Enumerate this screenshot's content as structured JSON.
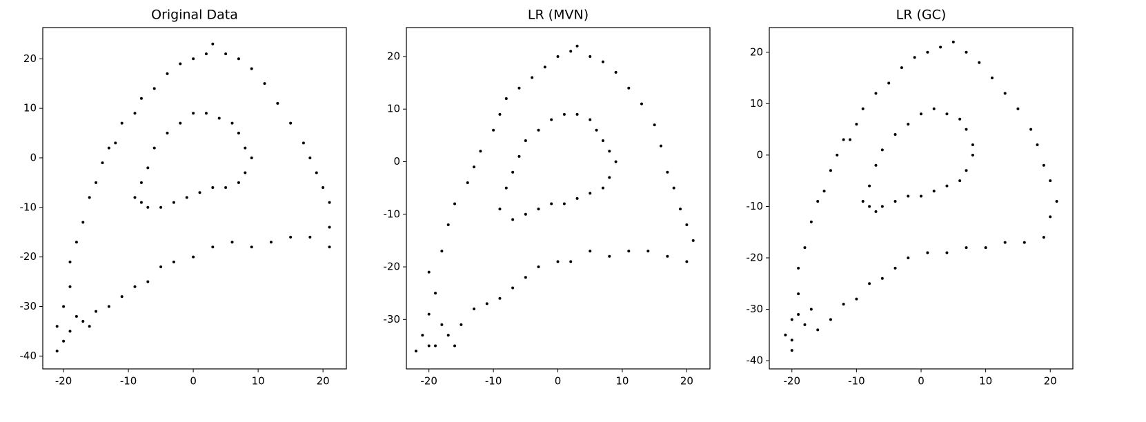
{
  "chart_data": [
    {
      "type": "scatter",
      "title": "Original Data",
      "color": "#000000",
      "x": [
        -21,
        -21,
        -20,
        -19,
        -19,
        -18,
        -17,
        -16,
        -15,
        -14,
        -13,
        -12,
        -11,
        -9,
        -8,
        -6,
        -4,
        -2,
        0,
        2,
        3,
        5,
        7,
        9,
        11,
        13,
        15,
        17,
        18,
        19,
        20,
        21,
        21,
        21,
        18,
        15,
        12,
        9,
        6,
        3,
        0,
        -3,
        -5,
        -7,
        -9,
        -11,
        -13,
        -15,
        -17,
        -19,
        -18,
        -20,
        -16,
        -9,
        -8,
        -7,
        -6,
        -4,
        -2,
        0,
        2,
        4,
        6,
        7,
        8,
        9,
        8,
        7,
        5,
        3,
        1,
        -1,
        -3,
        -5,
        -7,
        -8
      ],
      "y": [
        -39,
        -34,
        -30,
        -26,
        -21,
        -17,
        -13,
        -8,
        -5,
        -1,
        2,
        3,
        7,
        9,
        12,
        14,
        17,
        19,
        20,
        21,
        23,
        21,
        20,
        18,
        15,
        11,
        7,
        3,
        0,
        -3,
        -6,
        -9,
        -14,
        -18,
        -16,
        -16,
        -17,
        -18,
        -17,
        -18,
        -20,
        -21,
        -22,
        -25,
        -26,
        -28,
        -30,
        -31,
        -33,
        -35,
        -32,
        -37,
        -34,
        -8,
        -5,
        -2,
        2,
        5,
        7,
        9,
        9,
        8,
        7,
        5,
        2,
        0,
        -3,
        -5,
        -6,
        -6,
        -7,
        -8,
        -9,
        -10,
        -10,
        -9
      ],
      "xlim": [
        -23.2,
        23.6
      ],
      "ylim": [
        -42.6,
        26.3
      ],
      "xticks": [
        -20,
        -10,
        0,
        10,
        20
      ],
      "yticks": [
        -40,
        -30,
        -20,
        -10,
        0,
        10,
        20
      ]
    },
    {
      "type": "scatter",
      "title": "LR (MVN)",
      "color": "#000000",
      "x": [
        -22,
        -21,
        -20,
        -19,
        -20,
        -18,
        -17,
        -16,
        -14,
        -13,
        -12,
        -10,
        -9,
        -8,
        -6,
        -4,
        -2,
        0,
        2,
        3,
        5,
        7,
        9,
        11,
        13,
        15,
        16,
        17,
        18,
        19,
        20,
        21,
        20,
        17,
        14,
        11,
        8,
        5,
        2,
        0,
        -3,
        -5,
        -7,
        -9,
        -11,
        -13,
        -15,
        -17,
        -19,
        -20,
        -18,
        -16,
        -9,
        -8,
        -7,
        -6,
        -5,
        -3,
        -1,
        1,
        3,
        5,
        6,
        7,
        8,
        9,
        8,
        7,
        5,
        3,
        1,
        -1,
        -3,
        -5,
        -7
      ],
      "y": [
        -36,
        -33,
        -29,
        -25,
        -21,
        -17,
        -12,
        -8,
        -4,
        -1,
        2,
        6,
        9,
        12,
        14,
        16,
        18,
        20,
        21,
        22,
        20,
        19,
        17,
        14,
        11,
        7,
        3,
        -2,
        -5,
        -9,
        -12,
        -15,
        -19,
        -18,
        -17,
        -17,
        -18,
        -17,
        -19,
        -19,
        -20,
        -22,
        -24,
        -26,
        -27,
        -28,
        -31,
        -33,
        -35,
        -35,
        -31,
        -35,
        -9,
        -5,
        -2,
        1,
        4,
        6,
        8,
        9,
        9,
        8,
        6,
        4,
        2,
        0,
        -3,
        -5,
        -6,
        -7,
        -8,
        -8,
        -9,
        -10,
        -11
      ],
      "xlim": [
        -23.5,
        23.6
      ],
      "ylim": [
        -39.4,
        25.5
      ],
      "xticks": [
        -20,
        -10,
        0,
        10,
        20
      ],
      "yticks": [
        -30,
        -20,
        -10,
        0,
        10,
        20
      ]
    },
    {
      "type": "scatter",
      "title": "LR (GC)",
      "color": "#000000",
      "x": [
        -21,
        -20,
        -20,
        -19,
        -19,
        -18,
        -17,
        -16,
        -15,
        -14,
        -13,
        -12,
        -11,
        -10,
        -9,
        -7,
        -5,
        -3,
        -1,
        1,
        3,
        5,
        7,
        9,
        11,
        13,
        15,
        17,
        18,
        19,
        20,
        21,
        20,
        19,
        16,
        13,
        10,
        7,
        4,
        1,
        -2,
        -4,
        -6,
        -8,
        -10,
        -12,
        -14,
        -16,
        -18,
        -19,
        -20,
        -17,
        -9,
        -8,
        -7,
        -6,
        -4,
        -2,
        0,
        2,
        4,
        6,
        7,
        8,
        8,
        7,
        6,
        4,
        2,
        0,
        -2,
        -4,
        -6,
        -7,
        -8
      ],
      "y": [
        -35,
        -38,
        -32,
        -27,
        -22,
        -18,
        -13,
        -9,
        -7,
        -3,
        0,
        3,
        3,
        6,
        9,
        12,
        14,
        17,
        19,
        20,
        21,
        22,
        20,
        18,
        15,
        12,
        9,
        5,
        2,
        -2,
        -5,
        -9,
        -12,
        -16,
        -17,
        -17,
        -18,
        -18,
        -19,
        -19,
        -20,
        -22,
        -24,
        -25,
        -28,
        -29,
        -32,
        -34,
        -33,
        -31,
        -36,
        -30,
        -9,
        -6,
        -2,
        1,
        4,
        6,
        8,
        9,
        8,
        7,
        5,
        2,
        0,
        -3,
        -5,
        -6,
        -7,
        -8,
        -8,
        -9,
        -10,
        -11,
        -10
      ],
      "xlim": [
        -23.5,
        23.5
      ],
      "ylim": [
        -41.6,
        24.8
      ],
      "xticks": [
        -20,
        -10,
        0,
        10,
        20
      ],
      "yticks": [
        -40,
        -30,
        -20,
        -10,
        0,
        10,
        20
      ]
    }
  ]
}
